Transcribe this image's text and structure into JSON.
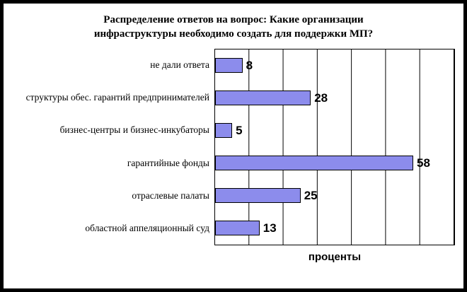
{
  "chart_data": {
    "type": "bar",
    "orientation": "horizontal",
    "title": "Распределение ответов на вопрос: Какие организации инфраструктуры необходимо создать для поддержки МП?",
    "categories": [
      "не дали ответа",
      "структуры обес. гарантий предпринимателей",
      "бизнес-центры и бизнес-инкубаторы",
      "гарантийные фонды",
      "отраслевые палаты",
      "областной аппеляционный суд"
    ],
    "values": [
      8,
      28,
      5,
      58,
      25,
      13
    ],
    "xlabel": "проценты",
    "xlim": [
      0,
      70
    ],
    "gridline_interval": 10,
    "grid": true,
    "legend": false,
    "bar_color": "#8C8CEC",
    "bar_border_color": "#000000",
    "background_color": "#FFFFFF",
    "frame_border_color": "#000000"
  }
}
